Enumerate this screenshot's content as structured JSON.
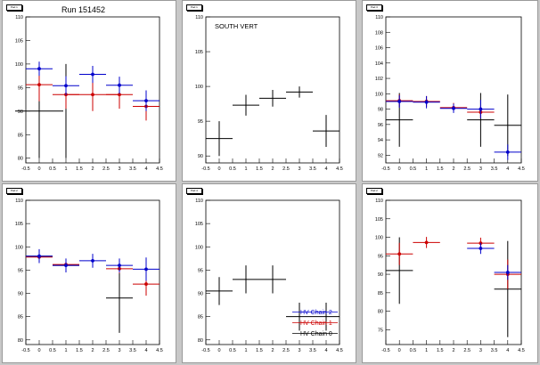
{
  "run_label": "Run 151452",
  "chart_data": [
    {
      "type": "scatter",
      "title": "",
      "pad_label": "Pad 1",
      "xlabel": "",
      "ylabel": "",
      "xlim": [
        -0.5,
        4.5
      ],
      "ylim": [
        79,
        110
      ],
      "xticks": [
        -0.5,
        0,
        0.5,
        1,
        1.5,
        2,
        2.5,
        3,
        3.5,
        4,
        4.5
      ],
      "yticks": [
        80,
        85,
        90,
        95,
        100,
        105,
        110
      ],
      "series": [
        {
          "name": "",
          "color": "#000000",
          "marker": false,
          "points": [
            {
              "x": 0,
              "y": 90,
              "xerr": 0.9,
              "yerr": 10
            },
            {
              "x": 1,
              "y": 90,
              "xerr": 0,
              "yerr": 10
            }
          ]
        },
        {
          "name": "",
          "color": "#cc0000",
          "marker": true,
          "points": [
            {
              "x": 0,
              "y": 95.6,
              "xerr": 0.5,
              "yerr": 3.5
            },
            {
              "x": 1,
              "y": 93.5,
              "xerr": 0.5,
              "yerr": 3
            },
            {
              "x": 2,
              "y": 93.5,
              "xerr": 1,
              "yerr": 3.5
            },
            {
              "x": 3,
              "y": 93.5,
              "xerr": 0.5,
              "yerr": 3
            },
            {
              "x": 4,
              "y": 91,
              "xerr": 0.5,
              "yerr": 3
            }
          ]
        },
        {
          "name": "",
          "color": "#0000cc",
          "marker": true,
          "points": [
            {
              "x": 0,
              "y": 99,
              "xerr": 0.5,
              "yerr": 1.5
            },
            {
              "x": 1,
              "y": 95.4,
              "xerr": 0.5,
              "yerr": 2
            },
            {
              "x": 2,
              "y": 97.8,
              "xerr": 0.5,
              "yerr": 1.8
            },
            {
              "x": 3,
              "y": 95.5,
              "xerr": 0.5,
              "yerr": 1.8
            },
            {
              "x": 4,
              "y": 92.2,
              "xerr": 0.5,
              "yerr": 2.2
            }
          ]
        }
      ]
    },
    {
      "type": "scatter",
      "title": "SOUTH VERT",
      "pad_label": "Pad 1",
      "xlabel": "",
      "ylabel": "",
      "xlim": [
        -0.5,
        4.5
      ],
      "ylim": [
        89,
        110
      ],
      "xticks": [
        -0.5,
        0,
        0.5,
        1,
        1.5,
        2,
        2.5,
        3,
        3.5,
        4,
        4.5
      ],
      "yticks": [
        90,
        95,
        100,
        105,
        110
      ],
      "series": [
        {
          "name": "",
          "color": "#000000",
          "marker": false,
          "points": [
            {
              "x": 0,
              "y": 92.5,
              "xerr": 0.5,
              "yerr": 2.5
            },
            {
              "x": 1,
              "y": 97.3,
              "xerr": 0.5,
              "yerr": 1.5
            },
            {
              "x": 2,
              "y": 98.3,
              "xerr": 0.5,
              "yerr": 1.2
            },
            {
              "x": 3,
              "y": 99.2,
              "xerr": 0.5,
              "yerr": 0.8
            },
            {
              "x": 4,
              "y": 93.6,
              "xerr": 0.5,
              "yerr": 2.3
            }
          ]
        }
      ]
    },
    {
      "type": "scatter",
      "title": "",
      "pad_label": "Pad 3",
      "xlabel": "",
      "ylabel": "",
      "xlim": [
        -0.5,
        4.5
      ],
      "ylim": [
        91,
        110
      ],
      "xticks": [
        -0.5,
        0,
        0.5,
        1,
        1.5,
        2,
        2.5,
        3,
        3.5,
        4,
        4.5
      ],
      "yticks": [
        92,
        94,
        96,
        98,
        100,
        102,
        104,
        106,
        108,
        110
      ],
      "series": [
        {
          "name": "",
          "color": "#000000",
          "marker": false,
          "points": [
            {
              "x": 0,
              "y": 96.6,
              "xerr": 0.5,
              "yerr": 3.5
            },
            {
              "x": 3,
              "y": 96.6,
              "xerr": 0.5,
              "yerr": 3.5
            },
            {
              "x": 4,
              "y": 95.9,
              "xerr": 0.5,
              "yerr": 4
            }
          ]
        },
        {
          "name": "",
          "color": "#cc0000",
          "marker": true,
          "points": [
            {
              "x": 0,
              "y": 99.1,
              "xerr": 0.5,
              "yerr": 0.8
            },
            {
              "x": 1,
              "y": 99.0,
              "xerr": 0.5,
              "yerr": 0.7
            },
            {
              "x": 2,
              "y": 98.2,
              "xerr": 0.5,
              "yerr": 0.6
            },
            {
              "x": 3,
              "y": 97.6,
              "xerr": 0.5,
              "yerr": 0.8
            }
          ]
        },
        {
          "name": "",
          "color": "#0000cc",
          "marker": true,
          "points": [
            {
              "x": 0,
              "y": 99.0,
              "xerr": 0.5,
              "yerr": 0.8
            },
            {
              "x": 1,
              "y": 98.9,
              "xerr": 0.5,
              "yerr": 0.8
            },
            {
              "x": 2,
              "y": 98.1,
              "xerr": 0.5,
              "yerr": 0.6
            },
            {
              "x": 3,
              "y": 98.0,
              "xerr": 0.5,
              "yerr": 1.2
            },
            {
              "x": 4,
              "y": 92.4,
              "xerr": 0.5,
              "yerr": 1
            }
          ]
        }
      ]
    },
    {
      "type": "scatter",
      "title": "",
      "pad_label": "Pad 2",
      "xlabel": "",
      "ylabel": "",
      "xlim": [
        -0.5,
        4.5
      ],
      "ylim": [
        79,
        110
      ],
      "xticks": [
        -0.5,
        0,
        0.5,
        1,
        1.5,
        2,
        2.5,
        3,
        3.5,
        4,
        4.5
      ],
      "yticks": [
        80,
        85,
        90,
        95,
        100,
        105,
        110
      ],
      "series": [
        {
          "name": "",
          "color": "#000000",
          "marker": false,
          "points": [
            {
              "x": 0,
              "y": 98,
              "xerr": 0.5,
              "yerr": 1
            },
            {
              "x": 1,
              "y": 96,
              "xerr": 0.5,
              "yerr": 1
            },
            {
              "x": 3,
              "y": 89,
              "xerr": 0.5,
              "yerr": 7.5
            }
          ]
        },
        {
          "name": "",
          "color": "#cc0000",
          "marker": true,
          "points": [
            {
              "x": 0,
              "y": 97.8,
              "xerr": 0.5,
              "yerr": 1
            },
            {
              "x": 1,
              "y": 96.2,
              "xerr": 0.5,
              "yerr": 1
            },
            {
              "x": 3,
              "y": 95.3,
              "xerr": 0.5,
              "yerr": 1
            },
            {
              "x": 4,
              "y": 92,
              "xerr": 0.5,
              "yerr": 2.5
            }
          ]
        },
        {
          "name": "",
          "color": "#0000cc",
          "marker": true,
          "points": [
            {
              "x": 0,
              "y": 98,
              "xerr": 0.5,
              "yerr": 1.5
            },
            {
              "x": 1,
              "y": 96,
              "xerr": 0.5,
              "yerr": 1.5
            },
            {
              "x": 2,
              "y": 97,
              "xerr": 0.5,
              "yerr": 1.5
            },
            {
              "x": 3,
              "y": 96,
              "xerr": 0.5,
              "yerr": 1.5
            },
            {
              "x": 4,
              "y": 95.2,
              "xerr": 0.5,
              "yerr": 2.5
            }
          ]
        }
      ]
    },
    {
      "type": "scatter",
      "title": "",
      "pad_label": "Pad 4",
      "xlabel": "",
      "ylabel": "",
      "xlim": [
        -0.5,
        4.5
      ],
      "ylim": [
        79,
        110
      ],
      "xticks": [
        -0.5,
        0,
        0.5,
        1,
        1.5,
        2,
        2.5,
        3,
        3.5,
        4,
        4.5
      ],
      "yticks": [
        80,
        85,
        90,
        95,
        100,
        105,
        110
      ],
      "legend": {
        "position": "bottom-right",
        "entries": [
          {
            "label": "HV Chain 2",
            "color": "#0000cc"
          },
          {
            "label": "HV Chain 1",
            "color": "#cc0000"
          },
          {
            "label": "HV Chain 0",
            "color": "#000000"
          }
        ]
      },
      "series": [
        {
          "name": "",
          "color": "#000000",
          "marker": false,
          "points": [
            {
              "x": 0,
              "y": 90.5,
              "xerr": 0.5,
              "yerr": 3
            },
            {
              "x": 1,
              "y": 93,
              "xerr": 0.5,
              "yerr": 3
            },
            {
              "x": 2,
              "y": 93,
              "xerr": 0.5,
              "yerr": 3
            },
            {
              "x": 3,
              "y": 85,
              "xerr": 0.5,
              "yerr": 3
            },
            {
              "x": 4,
              "y": 85,
              "xerr": 0.5,
              "yerr": 3
            }
          ]
        }
      ]
    },
    {
      "type": "scatter",
      "title": "",
      "pad_label": "Pad 2",
      "xlabel": "",
      "ylabel": "",
      "xlim": [
        -0.5,
        4.5
      ],
      "ylim": [
        71,
        110
      ],
      "xticks": [
        -0.5,
        0,
        0.5,
        1,
        1.5,
        2,
        2.5,
        3,
        3.5,
        4,
        4.5
      ],
      "yticks": [
        75,
        80,
        85,
        90,
        95,
        100,
        105,
        110
      ],
      "series": [
        {
          "name": "",
          "color": "#000000",
          "marker": false,
          "points": [
            {
              "x": 0,
              "y": 91,
              "xerr": 0.5,
              "yerr": 9
            },
            {
              "x": 4,
              "y": 86,
              "xerr": 0.5,
              "yerr": 13
            }
          ]
        },
        {
          "name": "",
          "color": "#cc0000",
          "marker": true,
          "points": [
            {
              "x": 0,
              "y": 95.5,
              "xerr": 0.5,
              "yerr": 3
            },
            {
              "x": 1,
              "y": 98.6,
              "xerr": 0.5,
              "yerr": 1.5
            },
            {
              "x": 3,
              "y": 98.4,
              "xerr": 0.5,
              "yerr": 1.5
            },
            {
              "x": 4,
              "y": 90,
              "xerr": 0.5,
              "yerr": 4
            }
          ]
        },
        {
          "name": "",
          "color": "#0000cc",
          "marker": true,
          "points": [
            {
              "x": 3,
              "y": 97,
              "xerr": 0.5,
              "yerr": 1.5
            },
            {
              "x": 4,
              "y": 90.5,
              "xerr": 0.5,
              "yerr": 2
            }
          ]
        }
      ]
    }
  ]
}
